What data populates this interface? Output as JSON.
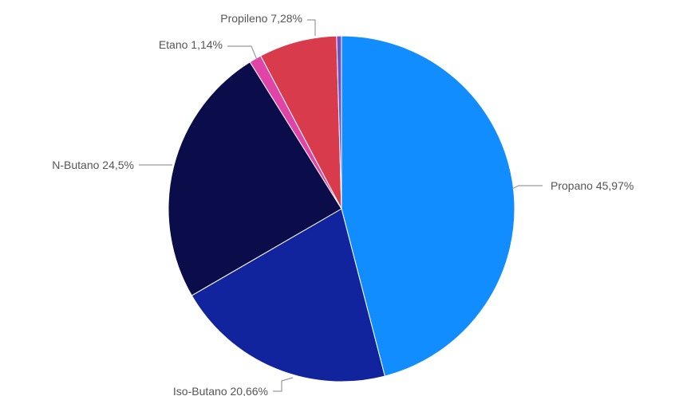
{
  "chart_data": {
    "type": "pie",
    "slices": [
      {
        "name": "Propano",
        "value": 45.97,
        "label": "Propano 45,97%",
        "color": "#118DFF"
      },
      {
        "name": "Iso-Butano",
        "value": 20.66,
        "label": "Iso-Butano 20,66%",
        "color": "#12239E"
      },
      {
        "name": "N-Butano",
        "value": 24.5,
        "label": "N-Butano 24,5%",
        "color": "#0B0C4A"
      },
      {
        "name": "Etano",
        "value": 1.14,
        "label": "Etano 1,14%",
        "color": "#E044A7"
      },
      {
        "name": "Propileno",
        "value": 7.28,
        "label": "Propileno 7,28%",
        "color": "#D83B4B"
      },
      {
        "name": "",
        "value": 0.45,
        "label": "",
        "color": "#744EC2"
      }
    ]
  }
}
